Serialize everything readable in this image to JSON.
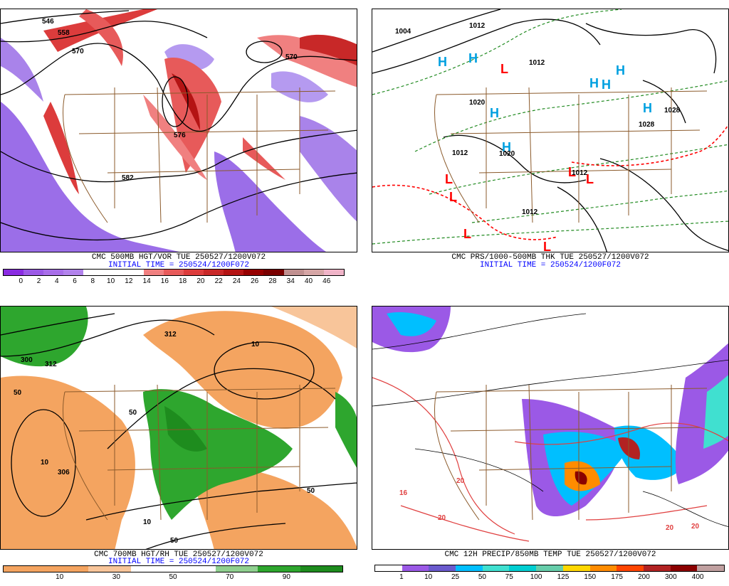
{
  "panels": [
    {
      "title": "CMC 500MB HGT/VOR TUE 250527/1200V072",
      "init": "INITIAL TIME = 250524/1200F072",
      "colorbar_colors": [
        "#8a2be2",
        "#9b59e6",
        "#a86ee9",
        "#b283ec",
        "#ffffff",
        "#ffffff",
        "#ffffff",
        "#f08080",
        "#e75a5a",
        "#dc3c3c",
        "#c82828",
        "#b41414",
        "#960000",
        "#7a0000",
        "#c09090",
        "#d6a6a6",
        "#f0b4c8"
      ],
      "colorbar_labels": [
        "0",
        "2",
        "4",
        "6",
        "8",
        "10",
        "12",
        "14",
        "16",
        "18",
        "20",
        "22",
        "24",
        "26",
        "28",
        "34",
        "40",
        "46"
      ],
      "contour_labels": [
        "546",
        "558",
        "570",
        "570",
        "576",
        "582"
      ]
    },
    {
      "title": "CMC PRS/1000-500MB THK TUE 250527/1200V072",
      "init": "INITIAL TIME = 250524/1200F072",
      "pressure_labels": [
        "1004",
        "1012",
        "1012",
        "1020",
        "1020",
        "1012",
        "1012",
        "1012",
        "1028",
        "1028"
      ],
      "high_symbol": "H",
      "low_symbol": "L"
    },
    {
      "title": "CMC 700MB HGT/RH TUE 250527/1200V072",
      "init": "INITIAL TIME = 250524/1200F072",
      "colorbar_colors": [
        "#f4a460",
        "#f4a460",
        "#f8c59a",
        "#ffffff",
        "#ffffff",
        "#90d090",
        "#2ea62e",
        "#1e8c1e"
      ],
      "colorbar_labels": [
        "10",
        "30",
        "50",
        "70",
        "90"
      ],
      "contour_labels": [
        "300",
        "312",
        "312",
        "306",
        "50",
        "10",
        "10",
        "50",
        "50",
        "10",
        "50"
      ]
    },
    {
      "title": "CMC 12H PRECIP/850MB TEMP TUE 250527/1200V072",
      "init": "",
      "colorbar_colors": [
        "#ffffff",
        "#9b59e6",
        "#6a5acd",
        "#00bfff",
        "#40e0d0",
        "#00ced1",
        "#66cdaa",
        "#ffd700",
        "#ff8c00",
        "#ff4500",
        "#b22222",
        "#8b0000",
        "#c0a0a0"
      ],
      "colorbar_labels": [
        "1",
        "10",
        "25",
        "50",
        "75",
        "100",
        "125",
        "150",
        "175",
        "200",
        "300",
        "400"
      ],
      "temp_labels": [
        "20",
        "20",
        "16",
        "20",
        "20"
      ]
    }
  ]
}
